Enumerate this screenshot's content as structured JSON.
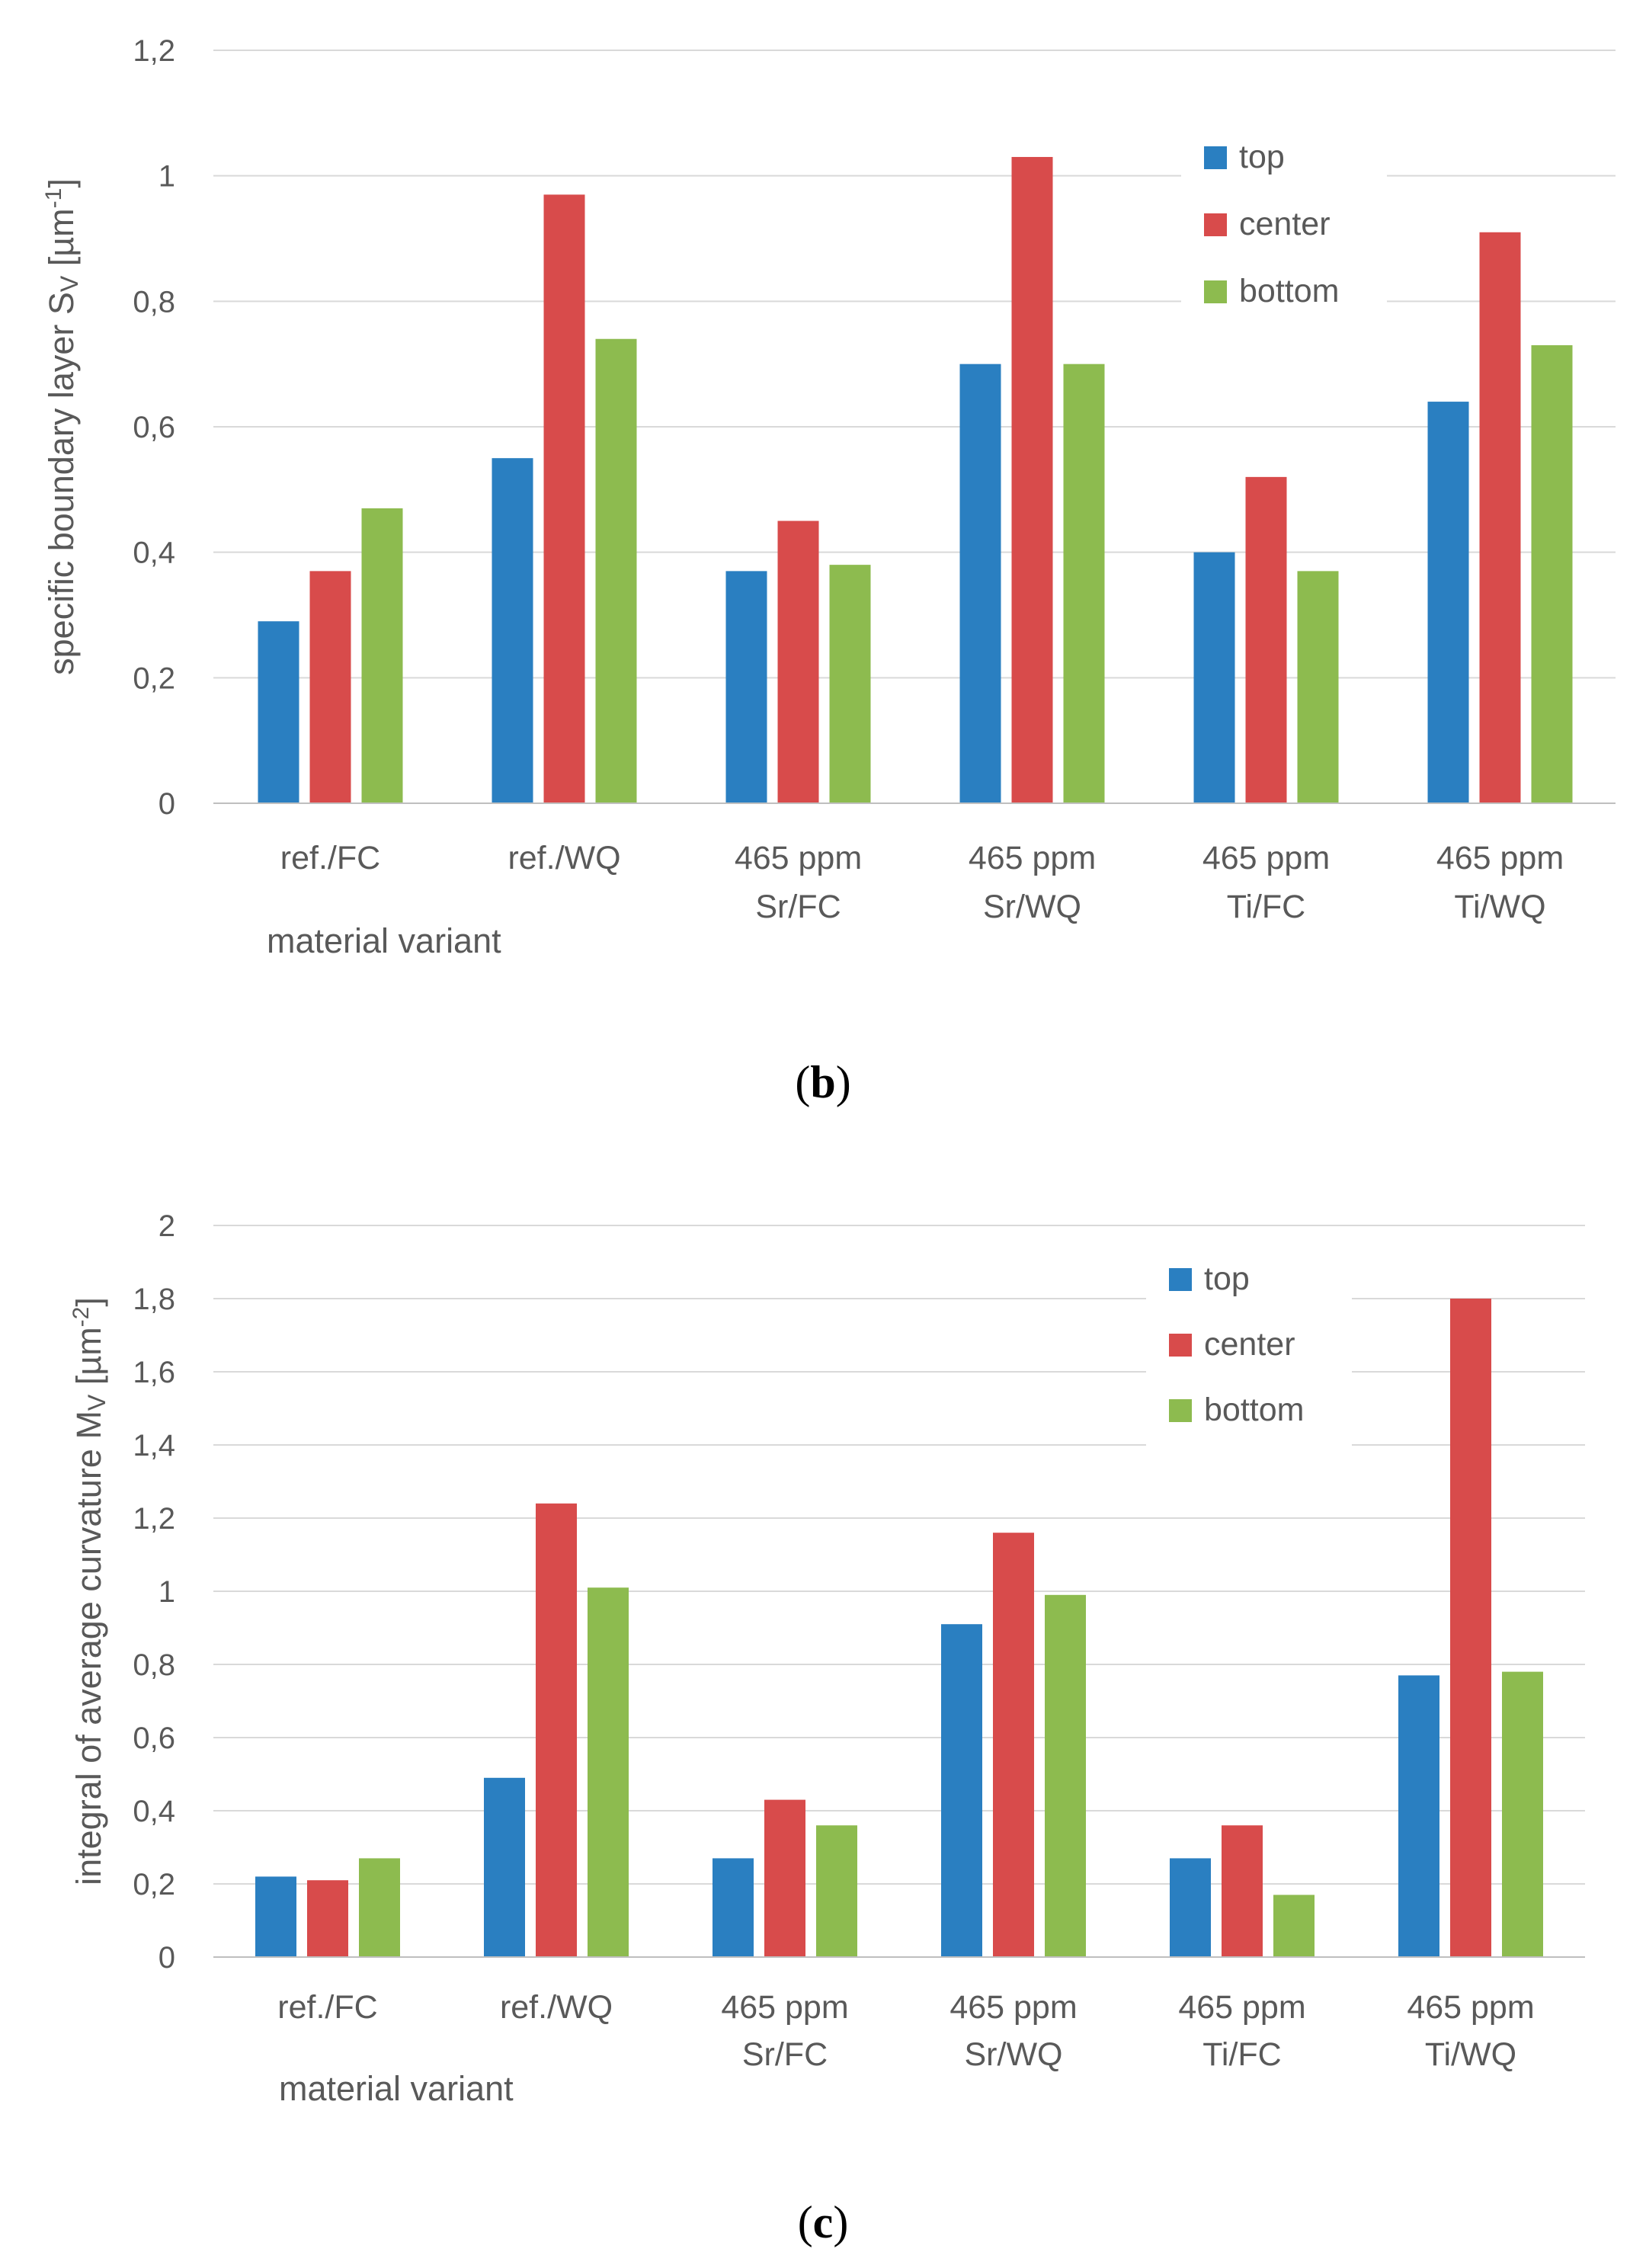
{
  "chart_data": [
    {
      "type": "bar",
      "title": "",
      "caption": {
        "open": "(",
        "letter": "b",
        "close": ")"
      },
      "xlabel": "material variant",
      "ylabel": {
        "main": "specific boundary layer S",
        "sub": "V",
        "unit_open": " [µm",
        "exp": "-1",
        "unit_close": "]"
      },
      "ylim": [
        0,
        1.2
      ],
      "yticks": [
        {
          "value": 0,
          "label": "0"
        },
        {
          "value": 0.2,
          "label": "0,2"
        },
        {
          "value": 0.4,
          "label": "0,4"
        },
        {
          "value": 0.6,
          "label": "0,6"
        },
        {
          "value": 0.8,
          "label": "0,8"
        },
        {
          "value": 1.0,
          "label": "1"
        },
        {
          "value": 1.2,
          "label": "1,2"
        }
      ],
      "categories": [
        {
          "line1": "ref./FC",
          "line2": ""
        },
        {
          "line1": "ref./WQ",
          "line2": ""
        },
        {
          "line1": "465 ppm",
          "line2": "Sr/FC"
        },
        {
          "line1": "465 ppm",
          "line2": "Sr/WQ"
        },
        {
          "line1": "465 ppm",
          "line2": "Ti/FC"
        },
        {
          "line1": "465 ppm",
          "line2": "Ti/WQ"
        }
      ],
      "series": [
        {
          "name": "top",
          "color": "#2a7fc1",
          "values": [
            0.29,
            0.55,
            0.37,
            0.7,
            0.4,
            0.64
          ]
        },
        {
          "name": "center",
          "color": "#d84b4b",
          "values": [
            0.37,
            0.97,
            0.45,
            1.03,
            0.52,
            0.91
          ]
        },
        {
          "name": "bottom",
          "color": "#8dbb4f",
          "values": [
            0.47,
            0.74,
            0.38,
            0.7,
            0.37,
            0.73
          ]
        }
      ],
      "grid": true,
      "legend": "top-right"
    },
    {
      "type": "bar",
      "title": "",
      "caption": {
        "open": "(",
        "letter": "c",
        "close": ")"
      },
      "xlabel": "material variant",
      "ylabel": {
        "main": "integral of average curvature M",
        "sub": "V",
        "unit_open": " [µm",
        "exp": "-2",
        "unit_close": "]"
      },
      "ylim": [
        0,
        2.0
      ],
      "yticks": [
        {
          "value": 0,
          "label": "0"
        },
        {
          "value": 0.2,
          "label": "0,2"
        },
        {
          "value": 0.4,
          "label": "0,4"
        },
        {
          "value": 0.6,
          "label": "0,6"
        },
        {
          "value": 0.8,
          "label": "0,8"
        },
        {
          "value": 1.0,
          "label": "1"
        },
        {
          "value": 1.2,
          "label": "1,2"
        },
        {
          "value": 1.4,
          "label": "1,4"
        },
        {
          "value": 1.6,
          "label": "1,6"
        },
        {
          "value": 1.8,
          "label": "1,8"
        },
        {
          "value": 2.0,
          "label": "2"
        }
      ],
      "categories": [
        {
          "line1": "ref./FC",
          "line2": ""
        },
        {
          "line1": "ref./WQ",
          "line2": ""
        },
        {
          "line1": "465 ppm",
          "line2": "Sr/FC"
        },
        {
          "line1": "465 ppm",
          "line2": "Sr/WQ"
        },
        {
          "line1": "465 ppm",
          "line2": "Ti/FC"
        },
        {
          "line1": "465 ppm",
          "line2": "Ti/WQ"
        }
      ],
      "series": [
        {
          "name": "top",
          "color": "#2a7fc1",
          "values": [
            0.22,
            0.49,
            0.27,
            0.91,
            0.27,
            0.77
          ]
        },
        {
          "name": "center",
          "color": "#d84b4b",
          "values": [
            0.21,
            1.24,
            0.43,
            1.16,
            0.36,
            1.8
          ]
        },
        {
          "name": "bottom",
          "color": "#8dbb4f",
          "values": [
            0.27,
            1.01,
            0.36,
            0.99,
            0.17,
            0.78
          ]
        }
      ],
      "grid": true,
      "legend": "top-right"
    }
  ]
}
